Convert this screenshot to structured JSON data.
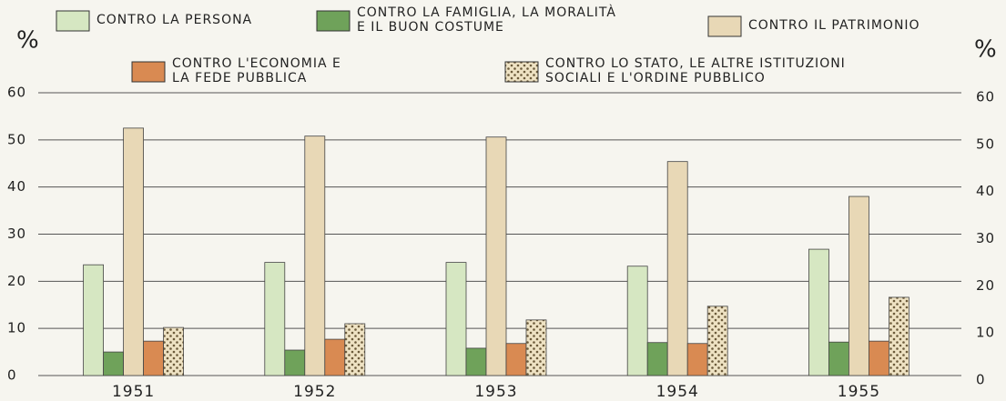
{
  "chart_data": {
    "type": "bar",
    "y_label": "%",
    "y2_label": "%",
    "categories": [
      "1951",
      "1952",
      "1953",
      "1954",
      "1955"
    ],
    "series": [
      {
        "name": "CONTRO LA PERSONA",
        "color": "#d6e7c2",
        "values": [
          23.5,
          24,
          24,
          23.2,
          26.8
        ]
      },
      {
        "name": "CONTRO LA FAMIGLIA, LA MORALITÀ\nE IL BUON COSTUME",
        "color": "#6fa25a",
        "values": [
          5,
          5.4,
          5.8,
          7,
          7.1
        ]
      },
      {
        "name": "CONTRO IL PATRIMONIO",
        "color": "#e8d8b6",
        "values": [
          52.5,
          50.8,
          50.6,
          45.4,
          38
        ]
      },
      {
        "name": "CONTRO L'ECONOMIA E\nLA FEDE PUBBLICA",
        "color": "#d98a52",
        "values": [
          7.3,
          7.7,
          6.8,
          6.8,
          7.3
        ]
      },
      {
        "name": "CONTRO LO STATO, LE ALTRE ISTITUZIONI\nSOCIALI E L'ORDINE PUBBLICO",
        "color": "#eee2c3",
        "pattern": "dots",
        "values": [
          10.2,
          11,
          11.8,
          14.7,
          16.6
        ]
      }
    ],
    "ylim": [
      0,
      60
    ],
    "yticks": [
      0,
      10,
      20,
      30,
      40,
      50,
      60
    ],
    "y2lim": [
      0,
      60
    ],
    "y2ticks": [
      0,
      10,
      20,
      30,
      40,
      50,
      60
    ],
    "grid": true
  }
}
